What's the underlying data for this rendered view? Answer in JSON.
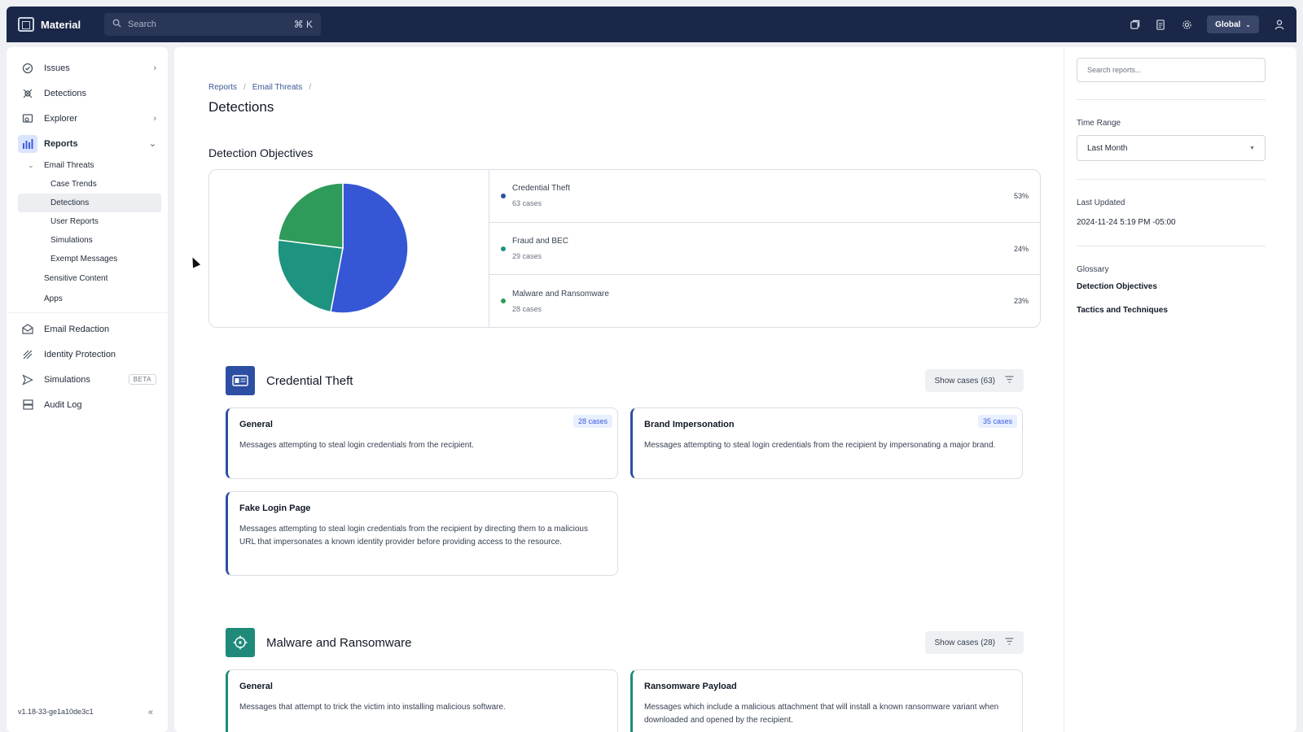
{
  "app": {
    "name": "Material",
    "search_placeholder": "Search",
    "search_shortcut": "⌘ K",
    "scope_label": "Global",
    "version": "v1.18-33-ge1a10de3c1"
  },
  "sidebar": {
    "items": [
      {
        "label": "Issues",
        "icon": "issues-icon"
      },
      {
        "label": "Detections",
        "icon": "detections-icon"
      },
      {
        "label": "Explorer",
        "icon": "explorer-icon"
      },
      {
        "label": "Reports",
        "icon": "reports-icon"
      }
    ],
    "reports_sub": {
      "email_threats": "Email Threats",
      "email_threats_children": [
        "Case Trends",
        "Detections",
        "User Reports",
        "Simulations",
        "Exempt Messages"
      ],
      "sensitive_content": "Sensitive Content",
      "apps": "Apps"
    },
    "bottom_items": [
      {
        "label": "Email Redaction",
        "icon": "email-redaction-icon"
      },
      {
        "label": "Identity Protection",
        "icon": "identity-protection-icon"
      },
      {
        "label": "Simulations",
        "icon": "simulations-icon",
        "badge": "BETA"
      },
      {
        "label": "Audit Log",
        "icon": "audit-log-icon"
      }
    ]
  },
  "breadcrumb": [
    "Reports",
    "Email Threats"
  ],
  "page_title": "Detections",
  "objectives": {
    "title": "Detection Objectives",
    "rows": [
      {
        "name": "Credential Theft",
        "count": "63 cases",
        "pct": "53%",
        "color": "#3557d6"
      },
      {
        "name": "Fraud and BEC",
        "count": "29 cases",
        "pct": "24%",
        "color": "#1e9480"
      },
      {
        "name": "Malware and Ransomware",
        "count": "28 cases",
        "pct": "23%",
        "color": "#2e9b5a"
      }
    ]
  },
  "chart_data": {
    "type": "pie",
    "categories": [
      "Credential Theft",
      "Fraud and BEC",
      "Malware and Ransomware"
    ],
    "values": [
      53,
      24,
      23
    ],
    "colors": [
      "#3557d6",
      "#1e9480",
      "#2e9b5a"
    ]
  },
  "categories": [
    {
      "title": "Credential Theft",
      "show_cases": "Show cases (63)",
      "color": "#2d4fa3",
      "cards": [
        {
          "name": "General",
          "badge": "28 cases",
          "desc": "Messages attempting to steal login credentials from the recipient."
        },
        {
          "name": "Brand Impersonation",
          "badge": "35 cases",
          "desc": "Messages attempting to steal login credentials from the recipient by impersonating a major brand."
        },
        {
          "name": "Fake Login Page",
          "badge": "",
          "desc": "Messages attempting to steal login credentials from the recipient by directing them to a malicious URL that impersonates a known identity provider before providing access to the resource."
        }
      ]
    },
    {
      "title": "Malware and Ransomware",
      "show_cases": "Show cases (28)",
      "color": "#1f8a7a",
      "cards": [
        {
          "name": "General",
          "desc": "Messages that attempt to trick the victim into installing malicious software."
        },
        {
          "name": "Ransomware Payload",
          "desc": "Messages which include a malicious attachment that will install a known ransomware variant when downloaded and opened by the recipient."
        }
      ]
    }
  ],
  "right_panel": {
    "search_placeholder": "Search reports...",
    "time_range_label": "Time Range",
    "time_range_value": "Last Month",
    "last_updated_label": "Last Updated",
    "last_updated_value": "2024-11-24 5:19 PM -05:00",
    "glossary_label": "Glossary",
    "glossary_links": [
      "Detection Objectives",
      "Tactics and Techniques"
    ]
  }
}
